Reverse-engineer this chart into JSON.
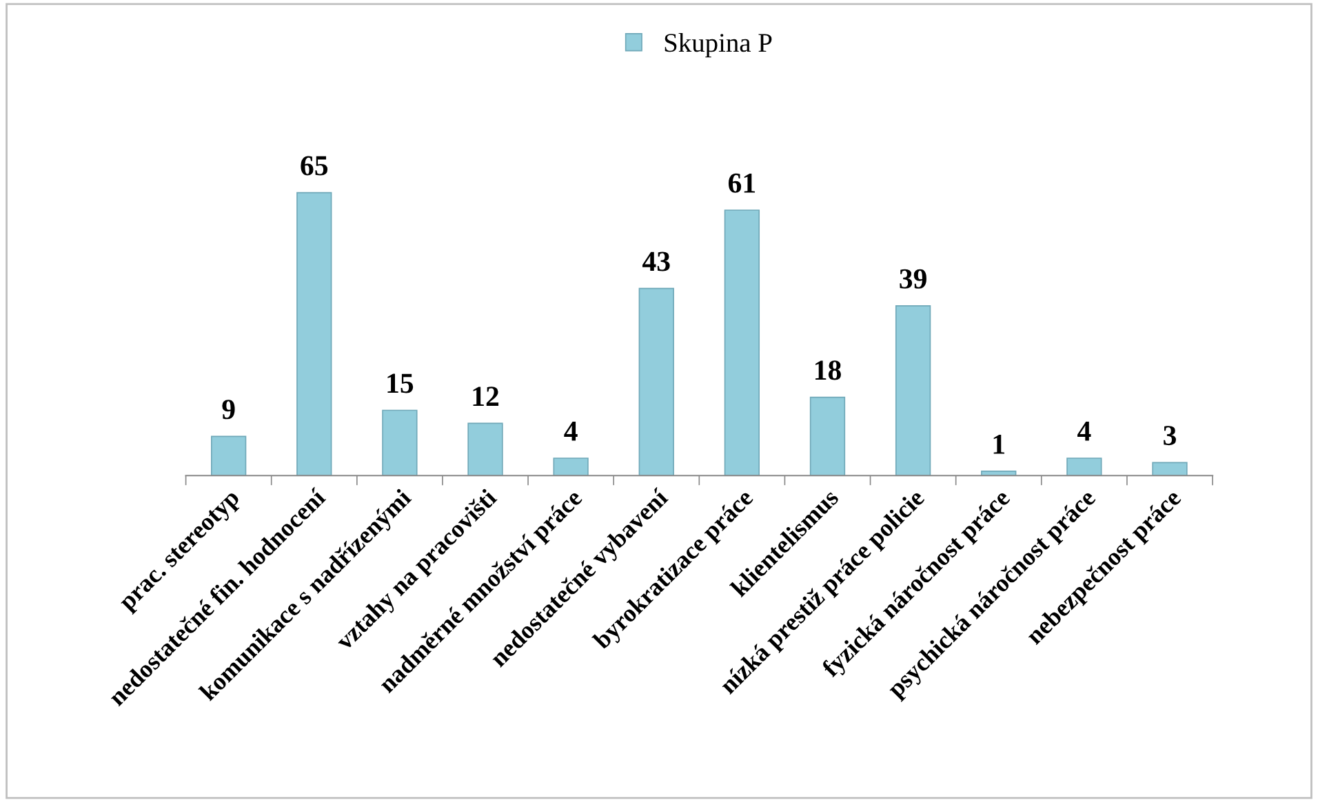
{
  "chart_data": {
    "type": "bar",
    "categories": [
      "prac. stereotyp",
      "nedostatečné fin. hodnocení",
      "komunikace s nadřízenými",
      "vztahy na pracovišti",
      "nadměrné množství práce",
      "nedostatečné vybavení",
      "byrokratizace práce",
      "klientelismus",
      "nízká prestiž práce policie",
      "fyzická náročnost práce",
      "psychická náročnost práce",
      "nebezpečnost práce"
    ],
    "series": [
      {
        "name": "Skupina P",
        "color": "#92cddc",
        "values": [
          9,
          65,
          15,
          12,
          4,
          43,
          61,
          18,
          39,
          1,
          4,
          3
        ]
      }
    ],
    "data_labels": true,
    "legend": "top",
    "grid": false
  }
}
